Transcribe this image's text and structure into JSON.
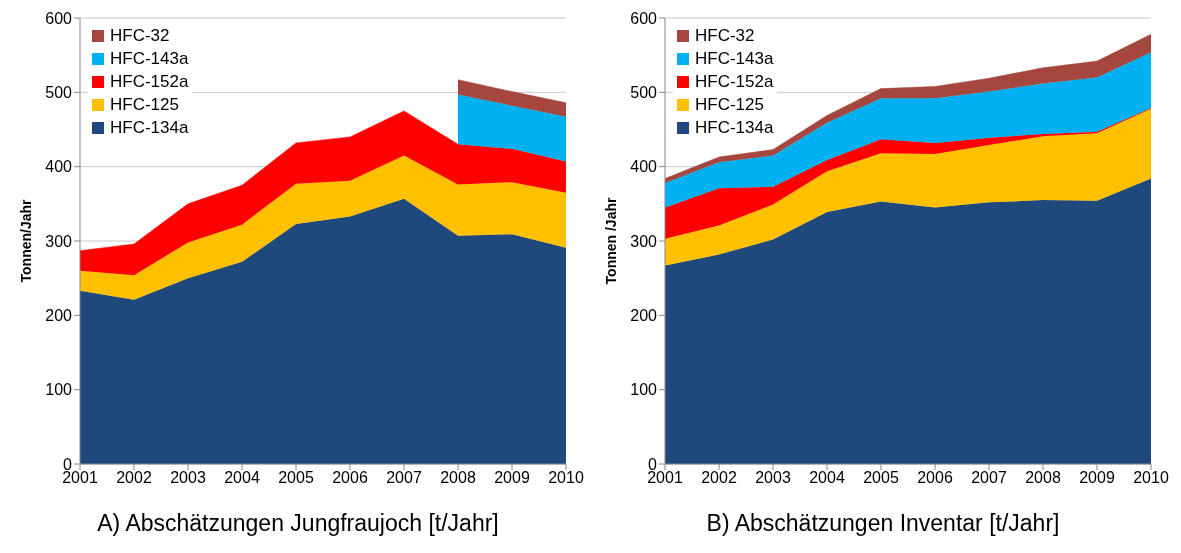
{
  "chart_data": [
    {
      "type": "area",
      "title": "A) Abschätzungen Jungfraujoch [t/Jahr]",
      "ylabel": "Tonnen/Jahr",
      "stacked": true,
      "categories": [
        "2001",
        "2002",
        "2003",
        "2004",
        "2005",
        "2006",
        "2007",
        "2008",
        "2009",
        "2010"
      ],
      "series": [
        {
          "name": "HFC-134a",
          "color": "#1f497d",
          "values": [
            233,
            221,
            250,
            272,
            323,
            333,
            357,
            307,
            309,
            291
          ]
        },
        {
          "name": "HFC-125",
          "color": "#ffc000",
          "values": [
            27,
            33,
            48,
            50,
            54,
            48,
            58,
            69,
            70,
            74
          ]
        },
        {
          "name": "HFC-152a",
          "color": "#ff0000",
          "values": [
            27,
            42,
            52,
            53,
            55,
            59,
            60,
            54,
            45,
            42
          ]
        },
        {
          "name": "HFC-143a",
          "color": "#00b0f0",
          "values": [
            null,
            null,
            null,
            null,
            null,
            null,
            null,
            67,
            58,
            60
          ]
        },
        {
          "name": "HFC-32",
          "color": "#a5463f",
          "values": [
            null,
            null,
            null,
            null,
            null,
            null,
            null,
            20,
            19,
            19
          ]
        }
      ],
      "ylim": [
        0,
        600
      ],
      "yticks": [
        0,
        100,
        200,
        300,
        400,
        500,
        600
      ],
      "grid": "y",
      "legend": "top left"
    },
    {
      "type": "area",
      "title": "B) Abschätzungen Inventar [t/Jahr]",
      "ylabel": "Tonnen /Jahr",
      "stacked": true,
      "categories": [
        "2001",
        "2002",
        "2003",
        "2004",
        "2005",
        "2006",
        "2007",
        "2008",
        "2009",
        "2010"
      ],
      "series": [
        {
          "name": "HFC-134a",
          "color": "#1f497d",
          "values": [
            267,
            282,
            302,
            339,
            353,
            345,
            352,
            355,
            354,
            384
          ]
        },
        {
          "name": "HFC-125",
          "color": "#ffc000",
          "values": [
            36,
            39,
            47,
            55,
            65,
            72,
            77,
            86,
            91,
            94
          ]
        },
        {
          "name": "HFC-152a",
          "color": "#ff0000",
          "values": [
            42,
            50,
            24,
            15,
            19,
            15,
            10,
            3,
            2,
            1
          ]
        },
        {
          "name": "HFC-143a",
          "color": "#00b0f0",
          "values": [
            33,
            35,
            42,
            50,
            55,
            60,
            62,
            68,
            73,
            75
          ]
        },
        {
          "name": "HFC-32",
          "color": "#a5463f",
          "values": [
            6,
            7,
            8,
            10,
            13,
            16,
            18,
            21,
            22,
            24
          ]
        }
      ],
      "ylim": [
        0,
        600
      ],
      "yticks": [
        0,
        100,
        200,
        300,
        400,
        500,
        600
      ],
      "grid": "y",
      "legend": "top left"
    }
  ]
}
